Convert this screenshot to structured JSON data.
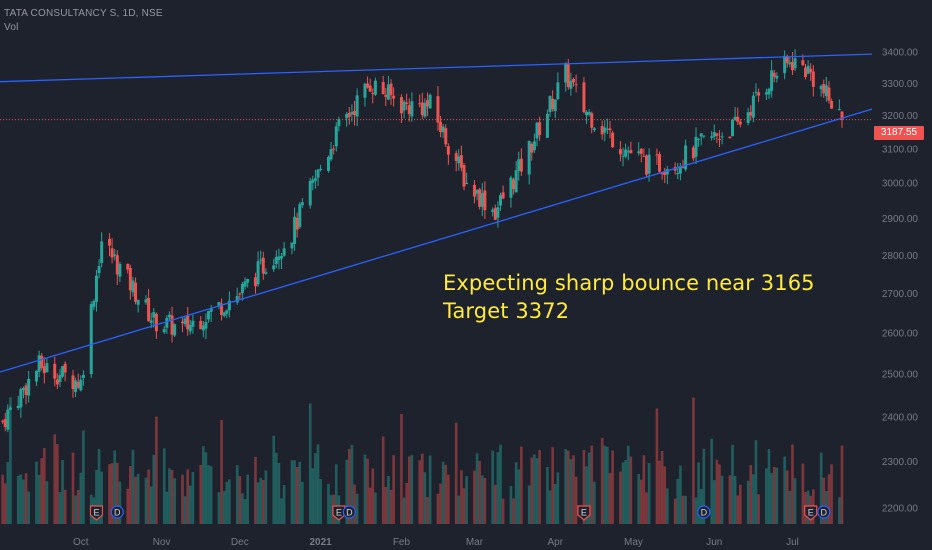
{
  "header": {
    "symbol_title": "TATA CONSULTANCY S, 1D, NSE",
    "volume_label": "Vol"
  },
  "colors": {
    "background": "#1e222d",
    "up": "#26a69a",
    "down": "#ef5350",
    "trendline": "#2962ff",
    "annotation": "#ffeb3b",
    "last_price_line": "#ef5350"
  },
  "icons": {
    "earnings_marker": "E",
    "dividend_marker": "D"
  },
  "annotation": {
    "line1": "Expecting sharp bounce near 3165",
    "line2": "Target 3372"
  },
  "last_price": {
    "label": "3187.55",
    "value": 3187.55
  },
  "chart_data": {
    "type": "candlestick",
    "title": "TATA CONSULTANCY S, 1D, NSE",
    "x_axis": {
      "tick_labels": [
        "Oct",
        "Nov",
        "Dec",
        "2021",
        "Feb",
        "Mar",
        "Apr",
        "May",
        "Jun",
        "Jul"
      ]
    },
    "y_axis": {
      "scale": "log",
      "side": "right",
      "tick_labels": [
        "2200.00",
        "2300.00",
        "2400.00",
        "2500.00",
        "2600.00",
        "2700.00",
        "2800.00",
        "2900.00",
        "3000.00",
        "3100.00",
        "3200.00",
        "3300.00",
        "3400.00"
      ],
      "tick_values": [
        2200,
        2300,
        2400,
        2500,
        2600,
        2700,
        2800,
        2900,
        3000,
        3100,
        3200,
        3300,
        3400
      ],
      "range": [
        2175,
        3500
      ]
    },
    "grid": false,
    "trendlines": [
      {
        "name": "resistance",
        "from": {
          "date": "2020-08-31",
          "price": 3305
        },
        "to": {
          "date": "2021-07-20",
          "price": 3390
        }
      },
      {
        "name": "support",
        "from": {
          "date": "2020-08-31",
          "price": 2505
        },
        "to": {
          "date": "2021-07-20",
          "price": 3192
        }
      }
    ],
    "key_closes": [
      {
        "date": "2020-09-01",
        "close": 2390
      },
      {
        "date": "2020-09-15",
        "close": 2520
      },
      {
        "date": "2020-10-01",
        "close": 2480
      },
      {
        "date": "2020-10-09",
        "close": 2840
      },
      {
        "date": "2020-10-29",
        "close": 2630
      },
      {
        "date": "2020-11-09",
        "close": 2610
      },
      {
        "date": "2020-12-01",
        "close": 2700
      },
      {
        "date": "2020-12-21",
        "close": 2860
      },
      {
        "date": "2021-01-08",
        "close": 3160
      },
      {
        "date": "2021-01-20",
        "close": 3300
      },
      {
        "date": "2021-02-02",
        "close": 3230
      },
      {
        "date": "2021-02-12",
        "close": 3230
      },
      {
        "date": "2021-02-26",
        "close": 3000
      },
      {
        "date": "2021-03-09",
        "close": 2920
      },
      {
        "date": "2021-03-19",
        "close": 3050
      },
      {
        "date": "2021-04-05",
        "close": 3330
      },
      {
        "date": "2021-04-12",
        "close": 3220
      },
      {
        "date": "2021-04-26",
        "close": 3110
      },
      {
        "date": "2021-05-07",
        "close": 3050
      },
      {
        "date": "2021-05-18",
        "close": 3060
      },
      {
        "date": "2021-05-28",
        "close": 3120
      },
      {
        "date": "2021-06-10",
        "close": 3170
      },
      {
        "date": "2021-06-23",
        "close": 3320
      },
      {
        "date": "2021-07-01",
        "close": 3370
      },
      {
        "date": "2021-07-07",
        "close": 3340
      },
      {
        "date": "2021-07-20",
        "close": 3187.55
      }
    ],
    "events": [
      {
        "type": "E",
        "date": "2020-10-07"
      },
      {
        "type": "D",
        "date": "2020-10-15"
      },
      {
        "type": "E",
        "date": "2021-01-08"
      },
      {
        "type": "D",
        "date": "2021-01-12"
      },
      {
        "type": "E",
        "date": "2021-04-12"
      },
      {
        "type": "D",
        "date": "2021-05-28"
      },
      {
        "type": "E",
        "date": "2021-07-08"
      },
      {
        "type": "D",
        "date": "2021-07-13"
      }
    ]
  }
}
